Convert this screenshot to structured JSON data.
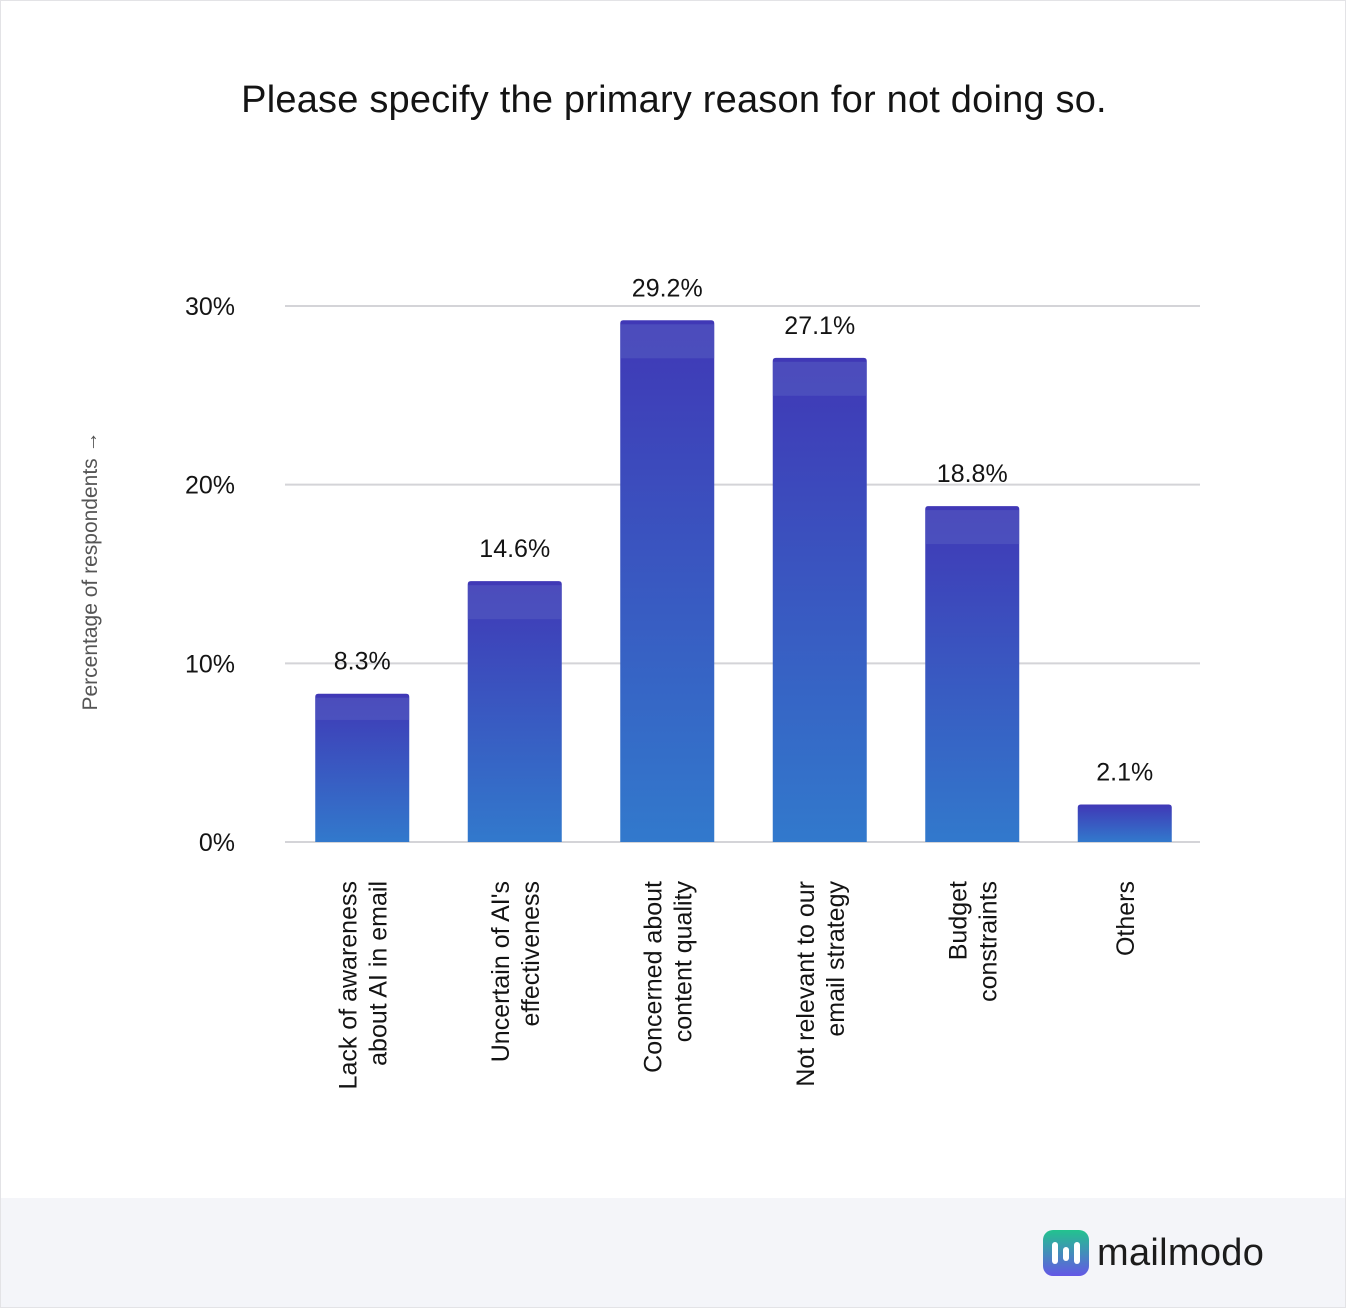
{
  "chart_data": {
    "type": "bar",
    "title": "Please specify the primary reason for not doing so.",
    "ylabel": "Percentage of respondents →",
    "xlabel": "",
    "ylim": [
      0,
      30
    ],
    "yticks": [
      0,
      10,
      20,
      30
    ],
    "ytick_labels": [
      "0%",
      "10%",
      "20%",
      "30%"
    ],
    "grid": true,
    "categories": [
      [
        "Lack of awareness",
        "about AI in email"
      ],
      [
        "Uncertain of AI's",
        "effectiveness"
      ],
      [
        "Concerned about",
        "content quality"
      ],
      [
        "Not relevant to our",
        "email strategy"
      ],
      [
        "Budget",
        "constraints"
      ],
      [
        "Others"
      ]
    ],
    "values": [
      8.3,
      14.6,
      29.2,
      27.1,
      18.8,
      2.1
    ],
    "value_labels": [
      "8.3%",
      "14.6%",
      "29.2%",
      "27.1%",
      "18.8%",
      "2.1%"
    ],
    "colors": {
      "bar_top": "#4038b6",
      "bar_bottom": "#3279cc",
      "grid": "#d4d4d8",
      "text": "#141414",
      "axis_label": "#555555"
    }
  },
  "brand": {
    "name": "mailmodo",
    "icon": "mailmodo-logo-icon",
    "icon_color": "#22c38e",
    "icon_dark": "#6457e6"
  }
}
